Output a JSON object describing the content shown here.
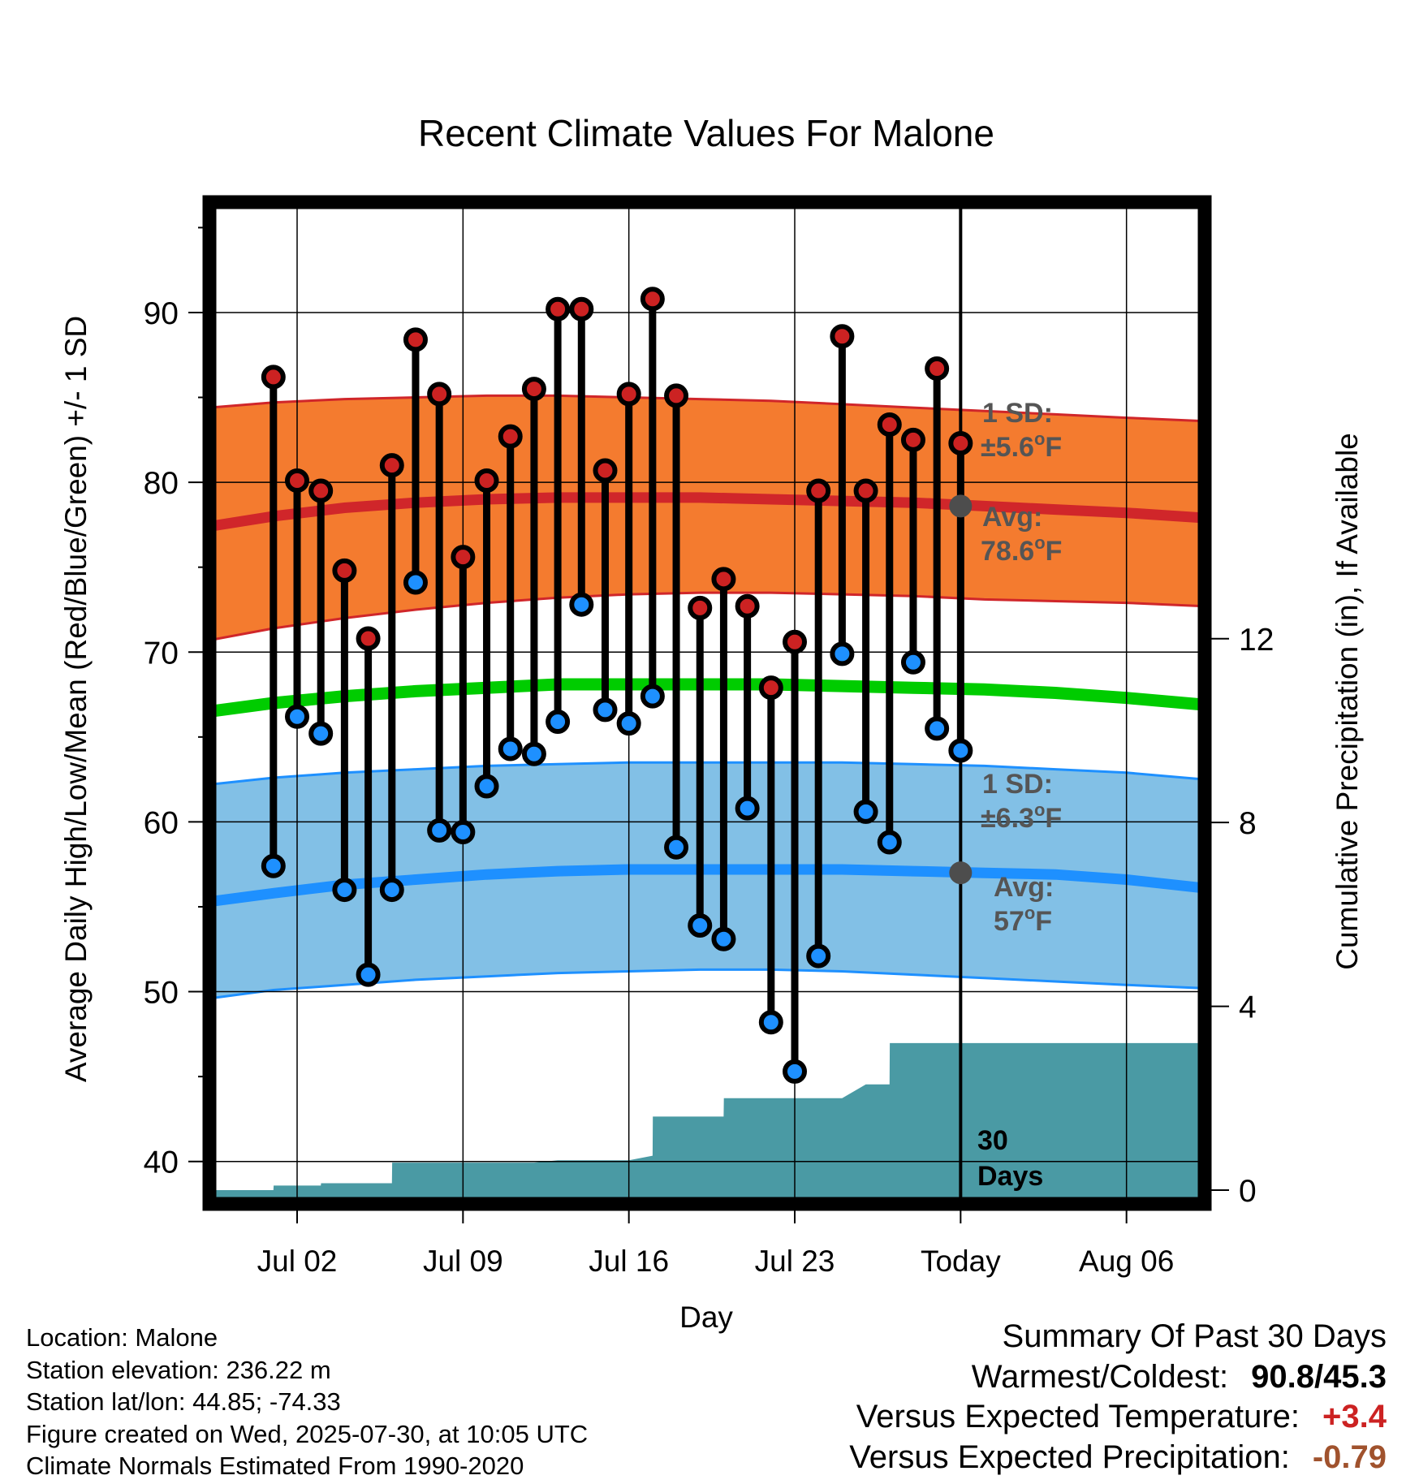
{
  "chart_data": {
    "type": "line",
    "title": "Recent Climate Values For Malone",
    "xlabel": "Day",
    "ylabel": "Average Daily High/Low/Mean (Red/Blue/Green) +/- 1 SD",
    "y2label": "Cumulative Precipitation (in), If Available",
    "ylim": [
      37.5,
      96.5
    ],
    "y2lim": [
      -0.3,
      21.5
    ],
    "y_ticks": [
      40,
      50,
      60,
      70,
      80,
      90
    ],
    "y2_ticks": [
      0,
      4,
      8,
      12
    ],
    "x_tick_labels": [
      "Jul 02",
      "Jul 09",
      "Jul 16",
      "Jul 23",
      "Today",
      "Aug 06"
    ],
    "x_tick_days": [
      2,
      9,
      16,
      23,
      30,
      37
    ],
    "x_range_days": [
      -1.7,
      40.3
    ],
    "grid": true,
    "days": [
      1,
      2,
      3,
      4,
      5,
      6,
      7,
      8,
      9,
      10,
      11,
      12,
      13,
      14,
      15,
      16,
      17,
      18,
      19,
      20,
      21,
      22,
      23,
      24,
      25,
      26,
      27,
      28,
      29,
      30
    ],
    "highs": [
      86.2,
      80.1,
      79.5,
      74.8,
      70.8,
      81.0,
      88.4,
      85.2,
      75.6,
      80.1,
      82.7,
      85.5,
      90.2,
      90.2,
      80.7,
      85.2,
      90.8,
      85.1,
      72.6,
      74.3,
      72.7,
      67.9,
      70.6,
      79.5,
      88.6,
      79.5,
      83.4,
      82.5,
      86.7,
      82.3
    ],
    "lows": [
      57.4,
      66.2,
      65.2,
      56.0,
      51.0,
      56.0,
      74.1,
      59.5,
      59.4,
      62.1,
      64.3,
      64.0,
      65.9,
      72.8,
      66.6,
      65.8,
      67.4,
      58.5,
      53.9,
      53.1,
      60.8,
      48.2,
      45.3,
      52.1,
      69.9,
      60.6,
      58.8,
      69.4,
      65.5,
      64.2
    ],
    "normals": {
      "days": [
        -1.7,
        1,
        4,
        7,
        10,
        13,
        16,
        19,
        22,
        25,
        28,
        31,
        34,
        37,
        40.3
      ],
      "high_mean": [
        77.4,
        78.0,
        78.5,
        78.8,
        79.0,
        79.1,
        79.1,
        79.1,
        79.0,
        78.9,
        78.8,
        78.6,
        78.4,
        78.2,
        77.9
      ],
      "high_upper": [
        84.4,
        84.7,
        84.9,
        85.0,
        85.1,
        85.1,
        85.0,
        84.9,
        84.8,
        84.6,
        84.4,
        84.2,
        84.0,
        83.8,
        83.6
      ],
      "high_lower": [
        70.7,
        71.4,
        72.0,
        72.5,
        72.9,
        73.2,
        73.4,
        73.5,
        73.5,
        73.4,
        73.3,
        73.1,
        73.0,
        72.9,
        72.7
      ],
      "mean": [
        66.5,
        67.0,
        67.4,
        67.7,
        67.9,
        68.1,
        68.1,
        68.1,
        68.1,
        68.0,
        67.9,
        67.8,
        67.6,
        67.3,
        66.9
      ],
      "low_mean": [
        55.3,
        55.8,
        56.3,
        56.6,
        56.9,
        57.1,
        57.2,
        57.2,
        57.2,
        57.2,
        57.1,
        57.0,
        56.9,
        56.6,
        56.1
      ],
      "low_upper": [
        62.2,
        62.6,
        62.9,
        63.1,
        63.3,
        63.4,
        63.5,
        63.5,
        63.5,
        63.5,
        63.4,
        63.3,
        63.1,
        62.9,
        62.5
      ],
      "low_lower": [
        49.6,
        50.1,
        50.4,
        50.7,
        50.9,
        51.1,
        51.2,
        51.3,
        51.3,
        51.2,
        51.0,
        50.8,
        50.6,
        50.4,
        50.2
      ]
    },
    "precip_cumulative": {
      "days": [
        -1.7,
        0.0,
        1.0,
        1.01,
        2.0,
        3.0,
        3.01,
        6.0,
        6.01,
        7.0,
        8.0,
        9.0,
        10.0,
        11.0,
        12.0,
        13.0,
        14.0,
        15.0,
        16.0,
        17.0,
        17.01,
        18.0,
        19.0,
        20.0,
        20.01,
        21.0,
        22.0,
        23.0,
        24.0,
        25.0,
        26.0,
        26.01,
        27.0,
        27.01,
        28.0,
        29.0,
        30.0,
        40.3
      ],
      "values": [
        0.0,
        0.0,
        0.0,
        0.1,
        0.1,
        0.1,
        0.15,
        0.15,
        0.6,
        0.6,
        0.6,
        0.6,
        0.6,
        0.6,
        0.6,
        0.65,
        0.65,
        0.65,
        0.65,
        0.75,
        1.6,
        1.6,
        1.6,
        1.6,
        2.0,
        2.0,
        2.0,
        2.0,
        2.0,
        2.0,
        2.3,
        2.3,
        2.3,
        3.2,
        3.2,
        3.2,
        3.2,
        3.2
      ]
    },
    "annotations": {
      "high_sd": "1 SD:",
      "high_sd_value": "±5.6°F",
      "high_avg_label": "Avg:",
      "high_avg_value": "78.6°F",
      "low_sd": "1 SD:",
      "low_sd_value": "±6.3°F",
      "low_avg_label": "Avg:",
      "low_avg_value": "57°F",
      "window_line1": "30",
      "window_line2": "Days"
    },
    "colors": {
      "high_band": "#f47b2f",
      "high_line": "#d0262a",
      "low_band": "#82c0e6",
      "low_line": "#1e90ff",
      "mean_line": "#00cc00",
      "precip": "#4a9aa4",
      "high_marker": "#cc2222",
      "low_marker": "#1e90ff",
      "avg_dot": "#4d4d4d",
      "annotation_text": "#555555"
    }
  },
  "info": {
    "location": "Location: Malone",
    "elevation": "Station elevation: 236.22 m",
    "latlon": "Station lat/lon: 44.85; -74.33",
    "created": "Figure created on Wed, 2025-07-30, at 10:05 UTC",
    "normals": "Climate Normals Estimated From 1990-2020"
  },
  "summary": {
    "title": "Summary Of Past 30 Days",
    "warmest_label": "Warmest/Coldest:",
    "warmest_value": "90.8/45.3",
    "temp_label": "Versus Expected Temperature:",
    "temp_value": "+3.4",
    "precip_label": "Versus Expected Precipitation:",
    "precip_value": "-0.79"
  }
}
